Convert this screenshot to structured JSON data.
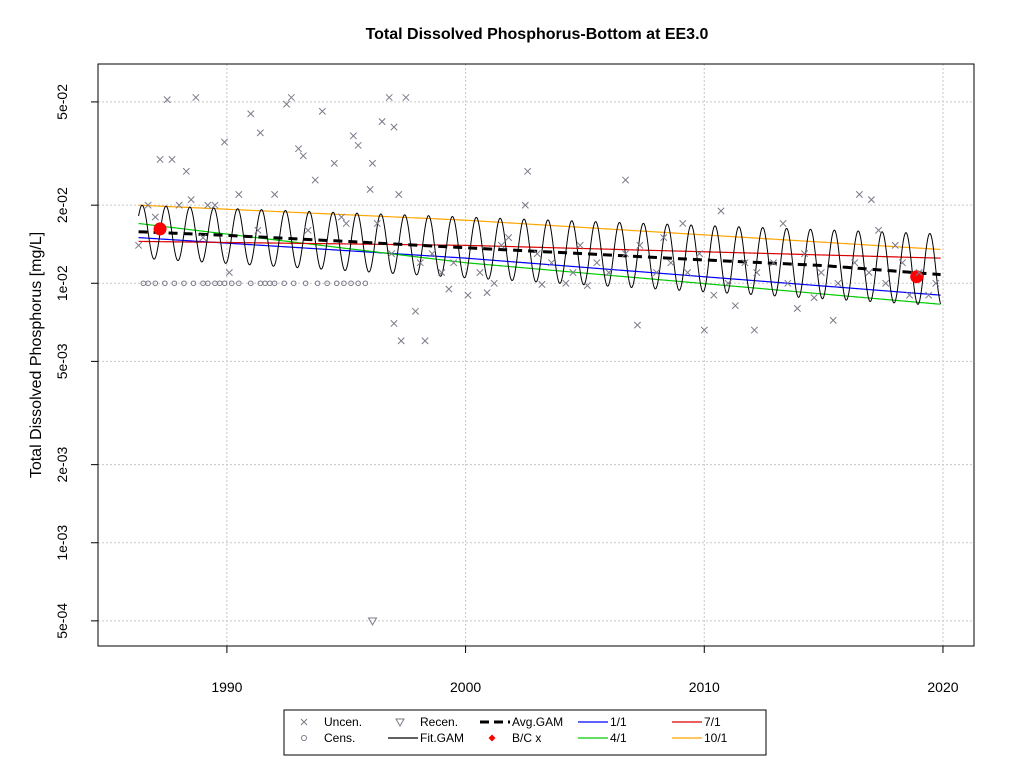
{
  "chart_data": {
    "type": "scatter",
    "title": "Total Dissolved Phosphorus-Bottom at EE3.0",
    "xlabel": "",
    "ylabel": "Total Dissolved Phosphorus [mg/L]",
    "xlim": [
      1984.6,
      2021.3
    ],
    "ylim": [
      0.0004,
      0.07
    ],
    "yscale": "log",
    "grid": true,
    "xticks": [
      1990,
      2000,
      2010,
      2020
    ],
    "yticks": [
      {
        "value": 0.05,
        "label": "5e-02"
      },
      {
        "value": 0.02,
        "label": "2e-02"
      },
      {
        "value": 0.01,
        "label": "1e-02"
      },
      {
        "value": 0.005,
        "label": "5e-03"
      },
      {
        "value": 0.002,
        "label": "2e-03"
      },
      {
        "value": 0.001,
        "label": "1e-03"
      },
      {
        "value": 0.0005,
        "label": "5e-04"
      }
    ],
    "legend": {
      "position": "bottom",
      "entries": [
        {
          "label": "Uncen.",
          "marker": "x",
          "color": "#7a7a8a"
        },
        {
          "label": "Cens.",
          "marker": "circle",
          "color": "#7a7a8a"
        },
        {
          "label": "Recen.",
          "marker": "triangle-down",
          "color": "#7a7a8a"
        },
        {
          "label": "Fit.GAM",
          "marker": "line",
          "color": "#000000"
        },
        {
          "label": "Avg.GAM",
          "marker": "dashed-line",
          "color": "#000000"
        },
        {
          "label": "B/C x",
          "marker": "diamond",
          "color": "#ff0000"
        },
        {
          "label": "1/1",
          "marker": "line",
          "color": "#0000ff"
        },
        {
          "label": "4/1",
          "marker": "line",
          "color": "#00cc00"
        },
        {
          "label": "7/1",
          "marker": "line",
          "color": "#dd0000"
        },
        {
          "label": "10/1",
          "marker": "line",
          "color": "#ffa500"
        }
      ]
    },
    "series": [
      {
        "name": "Avg.GAM",
        "kind": "line",
        "style": "dashed",
        "color": "#000000",
        "x": [
          1986.3,
          1990,
          1995,
          2000,
          2005,
          2010,
          2015,
          2019.9
        ],
        "y": [
          0.0158,
          0.0153,
          0.0145,
          0.0137,
          0.013,
          0.0123,
          0.0117,
          0.0108
        ]
      },
      {
        "name": "1/1",
        "kind": "line",
        "color": "#0000ff",
        "x": [
          1986.3,
          2000,
          2019.9
        ],
        "y": [
          0.015,
          0.0125,
          0.009
        ]
      },
      {
        "name": "4/1",
        "kind": "line",
        "color": "#00cc00",
        "x": [
          1986.3,
          2000,
          2019.9
        ],
        "y": [
          0.017,
          0.012,
          0.0083
        ]
      },
      {
        "name": "7/1",
        "kind": "line",
        "color": "#dd0000",
        "x": [
          1986.3,
          2000,
          2019.9
        ],
        "y": [
          0.0145,
          0.014,
          0.0125
        ]
      },
      {
        "name": "10/1",
        "kind": "line",
        "color": "#ffa500",
        "x": [
          1986.3,
          2000,
          2019.9
        ],
        "y": [
          0.02,
          0.0175,
          0.0135
        ]
      },
      {
        "name": "Fit.GAM",
        "kind": "seasonal-line",
        "color": "#000000",
        "x_start": 1986.3,
        "x_end": 2019.9,
        "peak_phase": 0.45,
        "peaks": {
          "x": [
            1986.3,
            2000,
            2019.9
          ],
          "y": [
            0.02,
            0.018,
            0.0155
          ]
        },
        "troughs": {
          "x": [
            1986.3,
            2000,
            2019.9
          ],
          "y": [
            0.0125,
            0.0105,
            0.0082
          ]
        }
      },
      {
        "name": "B/C x",
        "kind": "points",
        "marker": "circle",
        "color": "#ff0000",
        "x": [
          1987.2,
          2018.9
        ],
        "y": [
          0.0162,
          0.0106
        ]
      },
      {
        "name": "Cens.",
        "kind": "points",
        "marker": "circle",
        "color": "#7a7a8a",
        "x": [
          1986.5,
          1986.7,
          1987.0,
          1987.4,
          1987.8,
          1988.2,
          1988.6,
          1989.0,
          1989.2,
          1989.5,
          1989.7,
          1989.9,
          1990.2,
          1990.5,
          1991.0,
          1991.4,
          1991.6,
          1991.8,
          1992.0,
          1992.4,
          1992.8,
          1993.3,
          1993.8,
          1994.2,
          1994.6,
          1994.9,
          1995.2,
          1995.5,
          1995.8
        ],
        "y": [
          0.01,
          0.01,
          0.01,
          0.01,
          0.01,
          0.01,
          0.01,
          0.01,
          0.01,
          0.01,
          0.01,
          0.01,
          0.01,
          0.01,
          0.01,
          0.01,
          0.01,
          0.01,
          0.01,
          0.01,
          0.01,
          0.01,
          0.01,
          0.01,
          0.01,
          0.01,
          0.01,
          0.01,
          0.01
        ]
      },
      {
        "name": "Recen.",
        "kind": "points",
        "marker": "triangle-down",
        "color": "#7a7a8a",
        "x": [
          1996.1
        ],
        "y": [
          0.0005
        ]
      },
      {
        "name": "Uncen.",
        "kind": "points",
        "marker": "x",
        "color": "#7a7a8a",
        "x": [
          1986.3,
          1986.7,
          1987.0,
          1987.5,
          1988.0,
          1988.5,
          1989.0,
          1989.5,
          1987.2,
          1987.7,
          1988.7,
          1988.3,
          1989.9,
          1990.5,
          1991.0,
          1991.4,
          1992.0,
          1992.5,
          1993.0,
          1993.4,
          1994.0,
          1994.5,
          1995.0,
          1995.3,
          1996.0,
          1996.5,
          1997.0,
          1997.5,
          1992.7,
          1993.2,
          1991.3,
          1996.8,
          1997.2,
          1998.1,
          1998.6,
          1999.0,
          1999.5,
          2000.1,
          2000.6,
          2001.2,
          2001.8,
          2002.5,
          2003.0,
          2003.6,
          2004.2,
          2004.8,
          2005.5,
          2006.0,
          2006.7,
          2007.3,
          2008.0,
          2008.6,
          2009.3,
          2009.8,
          2010.4,
          2011.0,
          2011.7,
          2012.2,
          2012.9,
          2013.5,
          2014.2,
          2014.9,
          2015.6,
          2016.3,
          2016.9,
          2017.6,
          2018.3,
          2019.0,
          2019.7,
          1997.0,
          1997.3,
          1998.3,
          2002.6,
          2006.7,
          2007.2,
          2010.0,
          2012.1,
          2013.3,
          2015.4,
          2016.5,
          2017.0,
          2018.6,
          1996.3,
          1997.9,
          1989.2,
          1990.1,
          1993.7,
          1994.8,
          1995.5,
          1996.1,
          1996.9,
          1999.3,
          2000.9,
          2001.5,
          2003.2,
          2004.5,
          2005.1,
          2008.3,
          2009.1,
          2010.7,
          2011.3,
          2013.9,
          2014.6,
          2017.3,
          2018.0,
          2019.4
        ],
        "y": [
          0.014,
          0.02,
          0.018,
          0.051,
          0.02,
          0.021,
          0.015,
          0.02,
          0.03,
          0.03,
          0.052,
          0.027,
          0.035,
          0.022,
          0.045,
          0.038,
          0.022,
          0.049,
          0.033,
          0.016,
          0.046,
          0.029,
          0.017,
          0.037,
          0.023,
          0.042,
          0.04,
          0.052,
          0.052,
          0.031,
          0.016,
          0.052,
          0.022,
          0.012,
          0.013,
          0.011,
          0.012,
          0.009,
          0.011,
          0.01,
          0.015,
          0.02,
          0.013,
          0.012,
          0.01,
          0.014,
          0.012,
          0.011,
          0.013,
          0.014,
          0.011,
          0.012,
          0.011,
          0.013,
          0.009,
          0.01,
          0.012,
          0.011,
          0.012,
          0.01,
          0.013,
          0.011,
          0.01,
          0.012,
          0.011,
          0.01,
          0.012,
          0.011,
          0.01,
          0.007,
          0.006,
          0.006,
          0.027,
          0.025,
          0.0069,
          0.0066,
          0.0066,
          0.017,
          0.0072,
          0.022,
          0.021,
          0.009,
          0.017,
          0.0078,
          0.02,
          0.011,
          0.025,
          0.018,
          0.034,
          0.029,
          0.013,
          0.0095,
          0.0092,
          0.014,
          0.0099,
          0.011,
          0.0098,
          0.015,
          0.017,
          0.019,
          0.0082,
          0.008,
          0.0088,
          0.016,
          0.014,
          0.009
        ]
      }
    ]
  }
}
